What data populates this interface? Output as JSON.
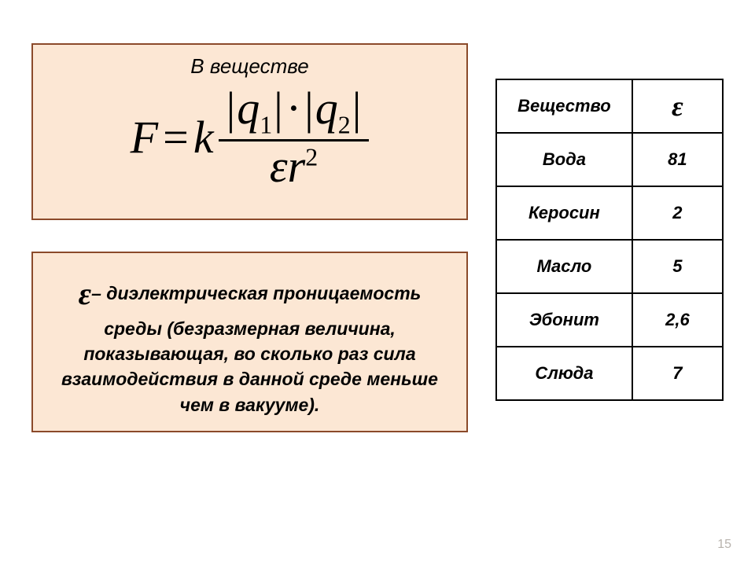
{
  "formula_card": {
    "title": "В  веществе",
    "F": "F",
    "eq": "=",
    "k": "k",
    "q1": "q",
    "sub1": "1",
    "q2": "q",
    "sub2": "2",
    "eps": "ε",
    "r": "r",
    "r_exp": "2"
  },
  "definition": {
    "eps": "ε",
    "dash": "–",
    "text": " диэлектрическая проницаемость среды (безразмерная величина, показывающая, во сколько раз сила взаимодействия в данной среде меньше чем в вакууме)."
  },
  "table": {
    "header_substance": "Вещество",
    "header_eps": "ε",
    "rows": [
      {
        "substance": "Вода",
        "value": "81"
      },
      {
        "substance": "Керосин",
        "value": "2"
      },
      {
        "substance": "Масло",
        "value": "5"
      },
      {
        "substance": "Эбонит",
        "value": "2,6"
      },
      {
        "substance": "Слюда",
        "value": "7"
      }
    ]
  },
  "page_number": "15",
  "colors": {
    "card_bg": "#fce7d4",
    "card_border": "#8b4a2a",
    "table_border": "#000000",
    "background": "#ffffff",
    "page_num": "#b8b3ad"
  }
}
